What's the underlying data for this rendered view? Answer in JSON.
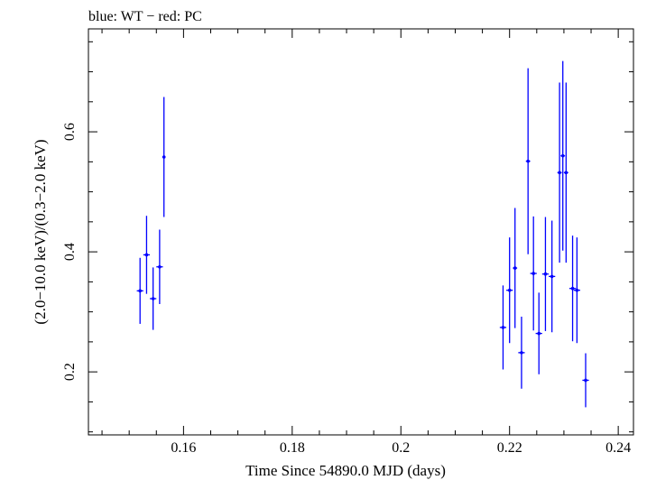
{
  "chart_data": {
    "type": "scatter",
    "title": "blue: WT − red: PC",
    "xlabel": "Time Since 54890.0 MJD (days)",
    "ylabel": "(2.0−10.0 keV)/(0.3−2.0 keV)",
    "xlim": [
      0.1425,
      0.2428
    ],
    "ylim": [
      0.095,
      0.7715
    ],
    "x_ticks": [
      0.16,
      0.18,
      0.2,
      0.22,
      0.24
    ],
    "x_tick_labels": [
      "0.16",
      "0.18",
      "0.2",
      "0.22",
      "0.24"
    ],
    "y_ticks": [
      0.2,
      0.4,
      0.6
    ],
    "y_tick_labels": [
      "0.2",
      "0.4",
      "0.6"
    ],
    "grid": false,
    "series": [
      {
        "color": "#0000ff",
        "points": [
          {
            "x": 0.152,
            "xerr": 0.0006,
            "y": 0.335,
            "yerr_low": 0.055,
            "yerr_high": 0.055
          },
          {
            "x": 0.1532,
            "xerr": 0.0006,
            "y": 0.395,
            "yerr_low": 0.065,
            "yerr_high": 0.065
          },
          {
            "x": 0.1544,
            "xerr": 0.0006,
            "y": 0.322,
            "yerr_low": 0.052,
            "yerr_high": 0.052
          },
          {
            "x": 0.1556,
            "xerr": 0.0006,
            "y": 0.375,
            "yerr_low": 0.062,
            "yerr_high": 0.062
          },
          {
            "x": 0.1564,
            "xerr": 0.0003,
            "y": 0.558,
            "yerr_low": 0.1,
            "yerr_high": 0.1
          },
          {
            "x": 0.2188,
            "xerr": 0.0006,
            "y": 0.274,
            "yerr_low": 0.07,
            "yerr_high": 0.07
          },
          {
            "x": 0.22,
            "xerr": 0.0006,
            "y": 0.336,
            "yerr_low": 0.088,
            "yerr_high": 0.088
          },
          {
            "x": 0.221,
            "xerr": 0.0004,
            "y": 0.373,
            "yerr_low": 0.1,
            "yerr_high": 0.1
          },
          {
            "x": 0.2222,
            "xerr": 0.0006,
            "y": 0.232,
            "yerr_low": 0.06,
            "yerr_high": 0.06
          },
          {
            "x": 0.2234,
            "xerr": 0.0004,
            "y": 0.551,
            "yerr_low": 0.155,
            "yerr_high": 0.155
          },
          {
            "x": 0.2244,
            "xerr": 0.0006,
            "y": 0.364,
            "yerr_low": 0.095,
            "yerr_high": 0.095
          },
          {
            "x": 0.2254,
            "xerr": 0.0006,
            "y": 0.264,
            "yerr_low": 0.068,
            "yerr_high": 0.068
          },
          {
            "x": 0.2266,
            "xerr": 0.0006,
            "y": 0.363,
            "yerr_low": 0.095,
            "yerr_high": 0.095
          },
          {
            "x": 0.2278,
            "xerr": 0.0006,
            "y": 0.359,
            "yerr_low": 0.093,
            "yerr_high": 0.093
          },
          {
            "x": 0.2292,
            "xerr": 0.0004,
            "y": 0.532,
            "yerr_low": 0.15,
            "yerr_high": 0.15
          },
          {
            "x": 0.2298,
            "xerr": 0.0004,
            "y": 0.56,
            "yerr_low": 0.158,
            "yerr_high": 0.158
          },
          {
            "x": 0.2304,
            "xerr": 0.0004,
            "y": 0.532,
            "yerr_low": 0.15,
            "yerr_high": 0.15
          },
          {
            "x": 0.2316,
            "xerr": 0.0006,
            "y": 0.339,
            "yerr_low": 0.088,
            "yerr_high": 0.088
          },
          {
            "x": 0.2324,
            "xerr": 0.0006,
            "y": 0.336,
            "yerr_low": 0.088,
            "yerr_high": 0.088
          },
          {
            "x": 0.234,
            "xerr": 0.0006,
            "y": 0.186,
            "yerr_low": 0.045,
            "yerr_high": 0.045
          }
        ]
      }
    ]
  }
}
